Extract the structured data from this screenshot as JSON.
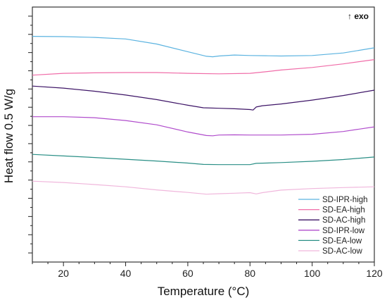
{
  "chart_data": {
    "type": "line",
    "title": "",
    "xlabel": "Temperature (°C)",
    "ylabel": "Heat flow 0.5 W/g",
    "annotation": "↑ exo",
    "xlim": [
      10,
      120
    ],
    "ylim": [
      0,
      100
    ],
    "xticks": [
      20,
      40,
      60,
      80,
      100,
      120
    ],
    "x_minor_step": 5,
    "y_tick_count": 14,
    "grid": false,
    "legend_position": "bottom-right",
    "series": [
      {
        "name": "SD-IPR-high",
        "color": "#5bb3e0",
        "points": [
          [
            10,
            88.5
          ],
          [
            20,
            88.4
          ],
          [
            30,
            88.1
          ],
          [
            40,
            87.5
          ],
          [
            50,
            85.5
          ],
          [
            60,
            82.5
          ],
          [
            66,
            80.7
          ],
          [
            68,
            80.5
          ],
          [
            70,
            80.8
          ],
          [
            75,
            81.2
          ],
          [
            80,
            81.0
          ],
          [
            85,
            80.9
          ],
          [
            90,
            80.8
          ],
          [
            100,
            81.0
          ],
          [
            110,
            82.0
          ],
          [
            120,
            84.0
          ]
        ]
      },
      {
        "name": "SD-EA-high",
        "color": "#f06ca8",
        "points": [
          [
            10,
            73.3
          ],
          [
            20,
            74.0
          ],
          [
            30,
            74.2
          ],
          [
            40,
            74.3
          ],
          [
            50,
            74.3
          ],
          [
            60,
            74.0
          ],
          [
            70,
            73.8
          ],
          [
            80,
            74.0
          ],
          [
            85,
            74.6
          ],
          [
            90,
            75.3
          ],
          [
            100,
            76.3
          ],
          [
            110,
            77.7
          ],
          [
            120,
            79.4
          ]
        ]
      },
      {
        "name": "SD-AC-high",
        "color": "#3d1466",
        "points": [
          [
            10,
            69.0
          ],
          [
            20,
            68.2
          ],
          [
            30,
            67.0
          ],
          [
            40,
            65.5
          ],
          [
            50,
            63.7
          ],
          [
            60,
            61.5
          ],
          [
            65,
            60.5
          ],
          [
            70,
            60.3
          ],
          [
            75,
            60.1
          ],
          [
            80,
            59.8
          ],
          [
            81,
            59.6
          ],
          [
            82,
            60.8
          ],
          [
            84,
            61.3
          ],
          [
            90,
            62.0
          ],
          [
            100,
            63.5
          ],
          [
            110,
            65.3
          ],
          [
            120,
            67.4
          ]
        ]
      },
      {
        "name": "SD-IPR-low",
        "color": "#b04ccc",
        "points": [
          [
            10,
            57.0
          ],
          [
            20,
            57.0
          ],
          [
            30,
            56.6
          ],
          [
            40,
            55.5
          ],
          [
            50,
            53.8
          ],
          [
            60,
            51.0
          ],
          [
            66,
            49.6
          ],
          [
            68,
            49.5
          ],
          [
            70,
            49.8
          ],
          [
            75,
            49.9
          ],
          [
            80,
            49.8
          ],
          [
            90,
            49.8
          ],
          [
            100,
            50.1
          ],
          [
            110,
            51.2
          ],
          [
            120,
            53.0
          ]
        ]
      },
      {
        "name": "SD-EA-low",
        "color": "#2a8f86",
        "points": [
          [
            10,
            42.2
          ],
          [
            20,
            41.6
          ],
          [
            30,
            41.0
          ],
          [
            40,
            40.3
          ],
          [
            50,
            39.6
          ],
          [
            60,
            38.8
          ],
          [
            65,
            38.3
          ],
          [
            70,
            38.2
          ],
          [
            80,
            38.2
          ],
          [
            82,
            38.7
          ],
          [
            90,
            39.0
          ],
          [
            100,
            39.5
          ],
          [
            110,
            40.2
          ],
          [
            120,
            41.2
          ]
        ]
      },
      {
        "name": "SD-AC-low",
        "color": "#f0b7dc",
        "points": [
          [
            10,
            31.7
          ],
          [
            20,
            31.2
          ],
          [
            30,
            30.4
          ],
          [
            40,
            29.5
          ],
          [
            50,
            28.3
          ],
          [
            60,
            27.3
          ],
          [
            66,
            26.6
          ],
          [
            70,
            26.8
          ],
          [
            75,
            27.0
          ],
          [
            80,
            27.2
          ],
          [
            82,
            26.7
          ],
          [
            84,
            27.2
          ],
          [
            90,
            28.2
          ],
          [
            100,
            28.8
          ],
          [
            110,
            29.2
          ],
          [
            120,
            29.5
          ]
        ]
      }
    ]
  }
}
